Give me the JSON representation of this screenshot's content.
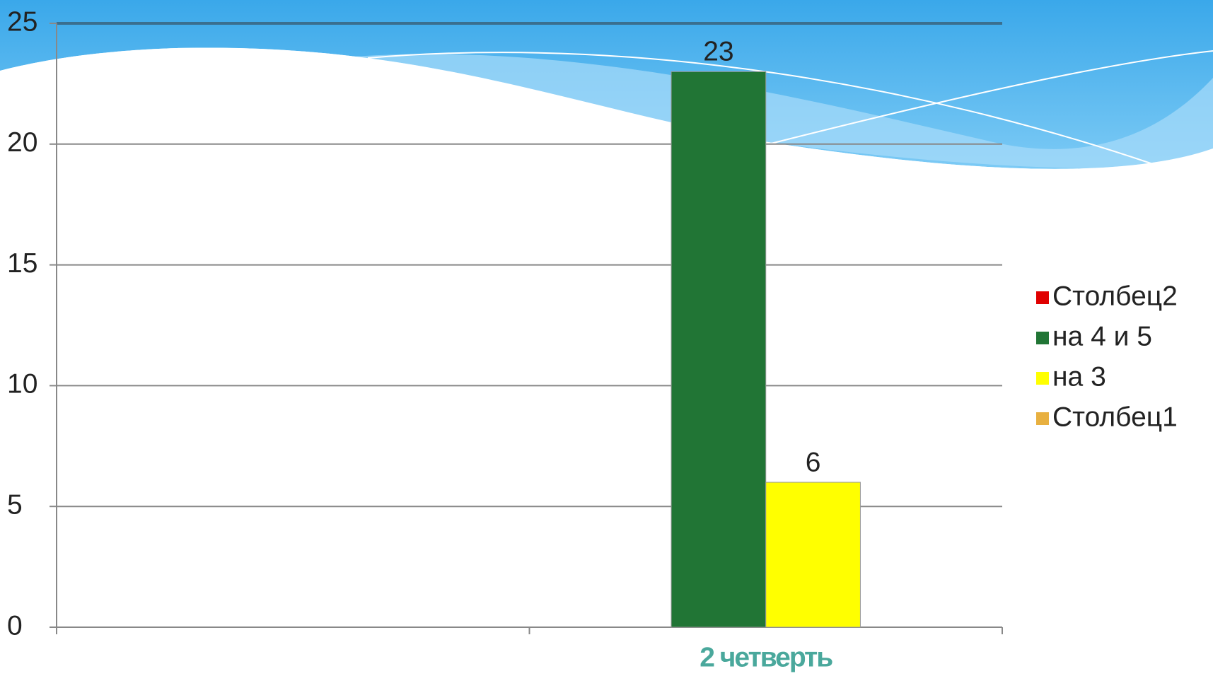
{
  "chart_data": {
    "type": "bar",
    "categories": [
      null,
      "2 четверть"
    ],
    "series": [
      {
        "name": "Столбец2",
        "color": "#e00000",
        "values": [
          null,
          null
        ]
      },
      {
        "name": "на 4 и 5",
        "color": "#217535",
        "values": [
          null,
          23
        ]
      },
      {
        "name": "на 3",
        "color": "#ffff00",
        "values": [
          null,
          6
        ]
      },
      {
        "name": "Столбец1",
        "color": "#e8b040",
        "values": [
          null,
          null
        ]
      }
    ],
    "ylim": [
      0,
      25
    ],
    "yticks": [
      0,
      5,
      10,
      15,
      20,
      25
    ],
    "grid": true,
    "legend": "right"
  }
}
